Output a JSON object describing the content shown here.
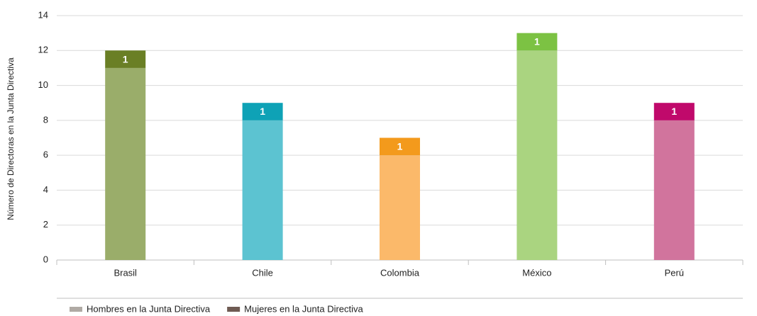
{
  "chart_data": {
    "type": "stacked-bar",
    "y_label": "Número de Directoras en la Junta Directiva",
    "categories": [
      "Brasil",
      "Chile",
      "Colombia",
      "México",
      "Perú"
    ],
    "series": [
      {
        "name": "Hombres en la Junta Directiva",
        "color": "#b0aaa4",
        "colors": [
          "#9aad6a",
          "#5cc3d1",
          "#fbb96a",
          "#aad480",
          "#d1749d"
        ],
        "values": [
          11,
          8,
          6,
          12,
          8
        ]
      },
      {
        "name": "Mujeres en la Junta Directiva",
        "color": "#6f5b53",
        "colors": [
          "#6a7f25",
          "#0ea2b6",
          "#f39a1c",
          "#7cc243",
          "#c0096b"
        ],
        "values": [
          1,
          1,
          1,
          1,
          1
        ],
        "data_labels": true
      }
    ],
    "ylim": [
      0,
      14
    ],
    "yticks": [
      0,
      2,
      4,
      6,
      8,
      10,
      12,
      14
    ],
    "grid": true,
    "legend": "bottom-left"
  }
}
